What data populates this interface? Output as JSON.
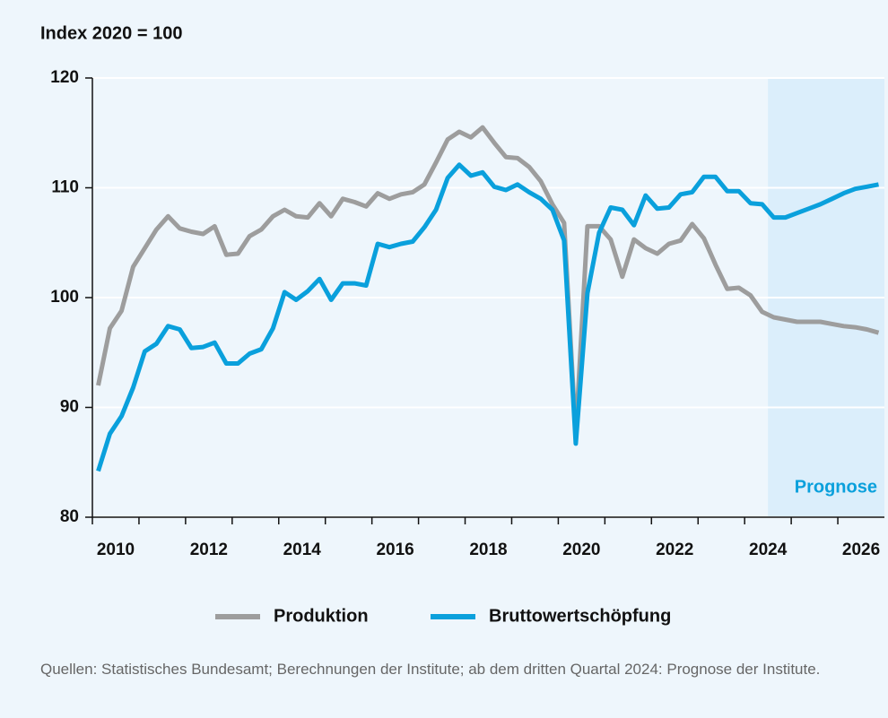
{
  "chart_data": {
    "type": "line",
    "y_label": "Index 2020 = 100",
    "categories": [
      "2010",
      null,
      null,
      null,
      null,
      null,
      null,
      null,
      "2012",
      null,
      null,
      null,
      null,
      null,
      null,
      null,
      "2014",
      null,
      null,
      null,
      null,
      null,
      null,
      null,
      "2016",
      null,
      null,
      null,
      null,
      null,
      null,
      null,
      "2018",
      null,
      null,
      null,
      null,
      null,
      null,
      null,
      "2020",
      null,
      null,
      null,
      null,
      null,
      null,
      null,
      "2022",
      null,
      null,
      null,
      null,
      null,
      null,
      null,
      "2024",
      null,
      null,
      null,
      null,
      null,
      null,
      null,
      "2026",
      null,
      null,
      null
    ],
    "series": [
      {
        "name": "Produktion",
        "color": "#9d9d9d",
        "values": [
          92,
          97.2,
          98.8,
          102.8,
          104.5,
          106.2,
          107.4,
          106.3,
          106,
          105.8,
          106.5,
          103.9,
          104,
          105.6,
          106.2,
          107.4,
          108,
          107.4,
          107.3,
          108.6,
          107.4,
          109,
          108.7,
          108.3,
          109.5,
          109,
          109.4,
          109.6,
          110.3,
          112.3,
          114.4,
          115.1,
          114.6,
          115.5,
          114.1,
          112.8,
          112.7,
          111.9,
          110.6,
          108.5,
          106.8,
          87.5,
          106.5,
          106.5,
          105.3,
          101.9,
          105.3,
          104.5,
          104,
          104.9,
          105.2,
          106.7,
          105.4,
          103,
          100.8,
          100.9,
          100.2,
          98.7,
          98.2,
          98,
          97.8,
          97.8,
          97.8,
          97.6,
          97.4,
          97.3,
          97.1,
          96.8
        ]
      },
      {
        "name": "Bruttowertschöpfung",
        "color": "#0aa0dc",
        "values": [
          84.2,
          87.6,
          89.2,
          91.8,
          95.1,
          95.8,
          97.4,
          97.1,
          95.4,
          95.5,
          95.9,
          94,
          94,
          94.9,
          95.3,
          97.2,
          100.5,
          99.8,
          100.6,
          101.7,
          99.8,
          101.3,
          101.3,
          101.1,
          104.9,
          104.6,
          104.9,
          105.1,
          106.4,
          108,
          110.9,
          112.1,
          111.1,
          111.4,
          110.1,
          109.8,
          110.3,
          109.6,
          109,
          108,
          105.2,
          86.7,
          100.4,
          105.9,
          108.2,
          108,
          106.6,
          109.3,
          108.1,
          108.2,
          109.4,
          109.6,
          111,
          111,
          109.7,
          109.7,
          108.6,
          108.5,
          107.3,
          107.3,
          107.7,
          108.1,
          108.5,
          109,
          109.5,
          109.9,
          110.1,
          110.3
        ]
      }
    ],
    "ylim": [
      80,
      120
    ],
    "yticks": [
      80,
      90,
      100,
      110,
      120
    ],
    "grid": true,
    "annotations": [
      {
        "text": "Prognose",
        "start": 58,
        "color": "#dbeefb"
      }
    ],
    "source": "Quellen: Statistisches Bundesamt; Berechnungen der Institute; ab dem dritten Quartal 2024: Prognose der Institute."
  }
}
